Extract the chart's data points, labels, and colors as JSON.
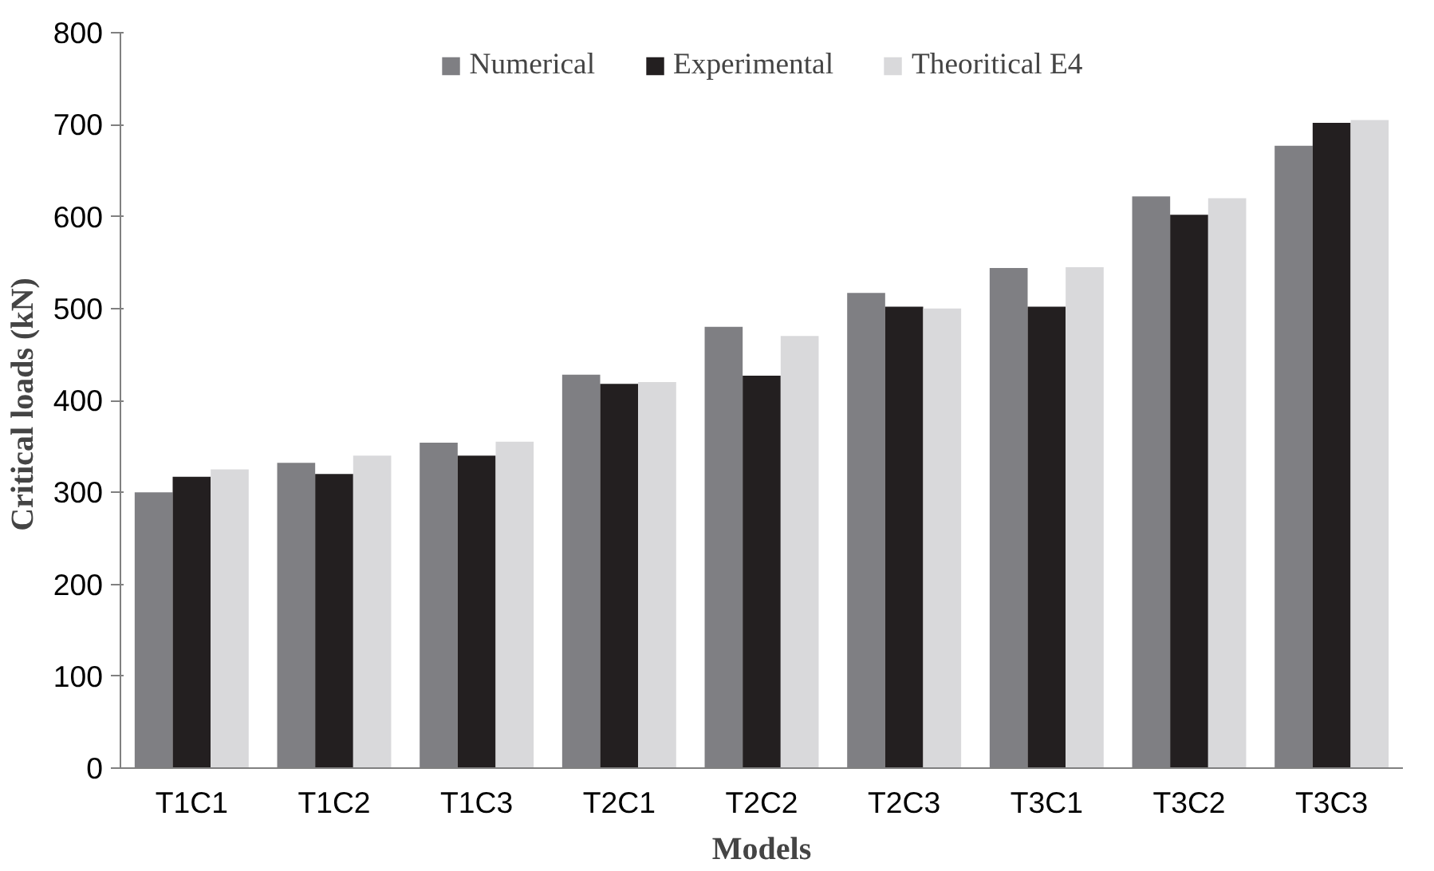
{
  "chart_data": {
    "type": "bar",
    "xlabel": "Models",
    "ylabel": "Critical  loads (kN)",
    "categories": [
      "T1C1",
      "T1C2",
      "T1C3",
      "T2C1",
      "T2C2",
      "T2C3",
      "T3C1",
      "T3C2",
      "T3C3"
    ],
    "series": [
      {
        "name": "Numerical",
        "color": "#7f7f83",
        "values": [
          300,
          332,
          354,
          428,
          480,
          517,
          544,
          622,
          677
        ]
      },
      {
        "name": "Experimental",
        "color": "#231f20",
        "values": [
          317,
          320,
          340,
          418,
          427,
          502,
          502,
          602,
          702
        ]
      },
      {
        "name": "Theoritical E4",
        "color": "#d9d9db",
        "values": [
          325,
          340,
          355,
          420,
          470,
          500,
          545,
          620,
          705
        ]
      }
    ],
    "ylim": [
      0,
      800
    ],
    "yticks": [
      0,
      100,
      200,
      300,
      400,
      500,
      600,
      700,
      800
    ],
    "grid": false,
    "legend": "top"
  }
}
